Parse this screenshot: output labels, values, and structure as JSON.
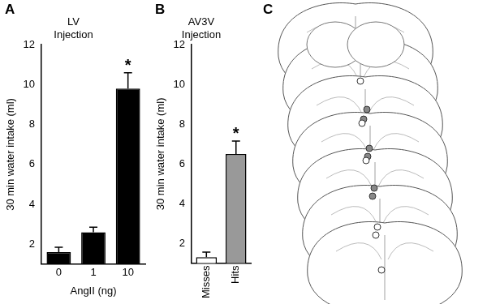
{
  "chart_data": [
    {
      "type": "bar",
      "panel": "A",
      "title": [
        "LV",
        "Injection"
      ],
      "categories": [
        "0",
        "1",
        "10"
      ],
      "values": [
        1.6,
        2.6,
        9.8
      ],
      "errors": [
        0.25,
        0.25,
        0.8
      ],
      "colors": [
        "#000000",
        "#000000",
        "#000000"
      ],
      "x_label": "AngII (ng)",
      "y_label": "30 min water intake (ml)",
      "ylim": [
        1,
        12
      ],
      "yticks": [
        2,
        4,
        6,
        8,
        10,
        12
      ],
      "grid": false,
      "annotations": [
        {
          "category": "10",
          "text": "*"
        }
      ]
    },
    {
      "type": "bar",
      "panel": "B",
      "title": [
        "AV3V",
        "Injection"
      ],
      "categories": [
        "Misses",
        "Hits"
      ],
      "values": [
        1.3,
        6.5
      ],
      "errors": [
        0.25,
        0.65
      ],
      "colors": [
        "#ffffff",
        "#999999"
      ],
      "y_label": "30 min water intake (ml)",
      "ylim": [
        1,
        12
      ],
      "yticks": [
        2,
        4,
        6,
        8,
        10,
        12
      ],
      "grid": false,
      "annotations": [
        {
          "category": "Hits",
          "text": "*"
        }
      ]
    }
  ],
  "diagram": {
    "panel": "C"
  }
}
